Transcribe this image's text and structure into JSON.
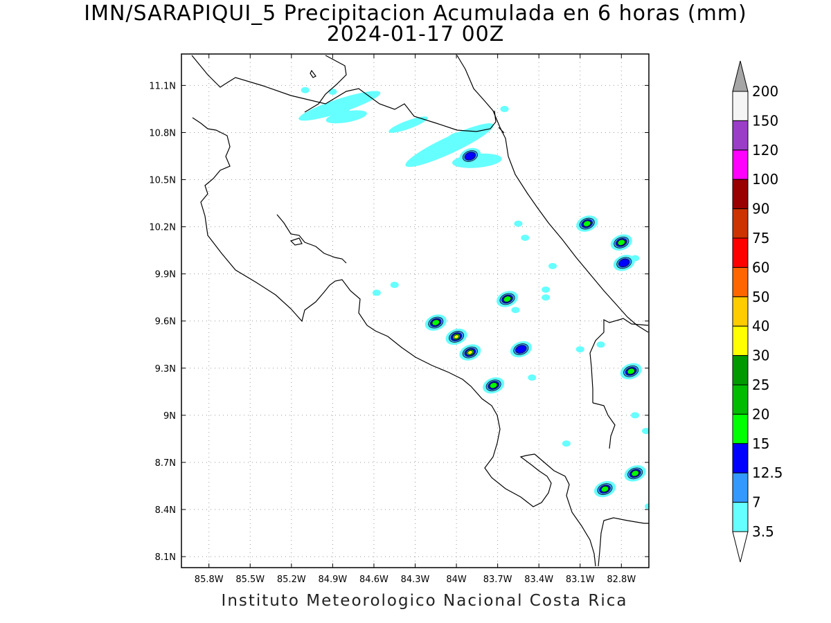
{
  "title": {
    "line1": "IMN/SARAPIQUI_5 Precipitacion Acumulada en 6 horas (mm)",
    "line2": "2024-01-17 00Z"
  },
  "footer": "Instituto Meteorologico Nacional Costa Rica",
  "map": {
    "lat_ticks": [
      "11.1N",
      "10.8N",
      "10.5N",
      "10.2N",
      "9.9N",
      "9.6N",
      "9.3N",
      "9N",
      "8.7N",
      "8.4N",
      "8.1N"
    ],
    "lon_ticks": [
      "85.8W",
      "85.5W",
      "85.2W",
      "84.9W",
      "84.6W",
      "84.3W",
      "84W",
      "83.7W",
      "83.4W",
      "83.1W",
      "82.8W"
    ],
    "gridlines": "dotted",
    "precipitation_cells": [
      {
        "lon": -84.85,
        "lat": 10.95,
        "level": "cyan"
      },
      {
        "lon": -84.0,
        "lat": 10.75,
        "level": "cyan"
      },
      {
        "lon": -83.9,
        "lat": 10.65,
        "level": "blue"
      },
      {
        "lon": -83.05,
        "lat": 10.22,
        "level": "green"
      },
      {
        "lon": -82.8,
        "lat": 10.1,
        "level": "green"
      },
      {
        "lon": -82.78,
        "lat": 9.97,
        "level": "blue"
      },
      {
        "lon": -84.15,
        "lat": 9.59,
        "level": "green"
      },
      {
        "lon": -84.0,
        "lat": 9.5,
        "level": "yellow"
      },
      {
        "lon": -83.9,
        "lat": 9.4,
        "level": "yellow"
      },
      {
        "lon": -83.73,
        "lat": 9.19,
        "level": "green"
      },
      {
        "lon": -83.53,
        "lat": 9.42,
        "level": "blue"
      },
      {
        "lon": -83.63,
        "lat": 9.74,
        "level": "green"
      },
      {
        "lon": -82.73,
        "lat": 9.28,
        "level": "green"
      },
      {
        "lon": -82.7,
        "lat": 8.63,
        "level": "green"
      },
      {
        "lon": -82.92,
        "lat": 8.53,
        "level": "green"
      }
    ]
  },
  "legend": {
    "labels": [
      "200",
      "150",
      "120",
      "100",
      "90",
      "75",
      "60",
      "50",
      "40",
      "30",
      "25",
      "20",
      "15",
      "12.5",
      "7",
      "3.5"
    ],
    "colors": [
      "#a6a6a6",
      "#f5f5f5",
      "#9a3ec8",
      "#ff00ff",
      "#990000",
      "#cc3300",
      "#ff0000",
      "#ff6600",
      "#ffcc00",
      "#ffff00",
      "#009900",
      "#00bb00",
      "#00ff00",
      "#0000ff",
      "#3399ff",
      "#66ffff"
    ]
  }
}
